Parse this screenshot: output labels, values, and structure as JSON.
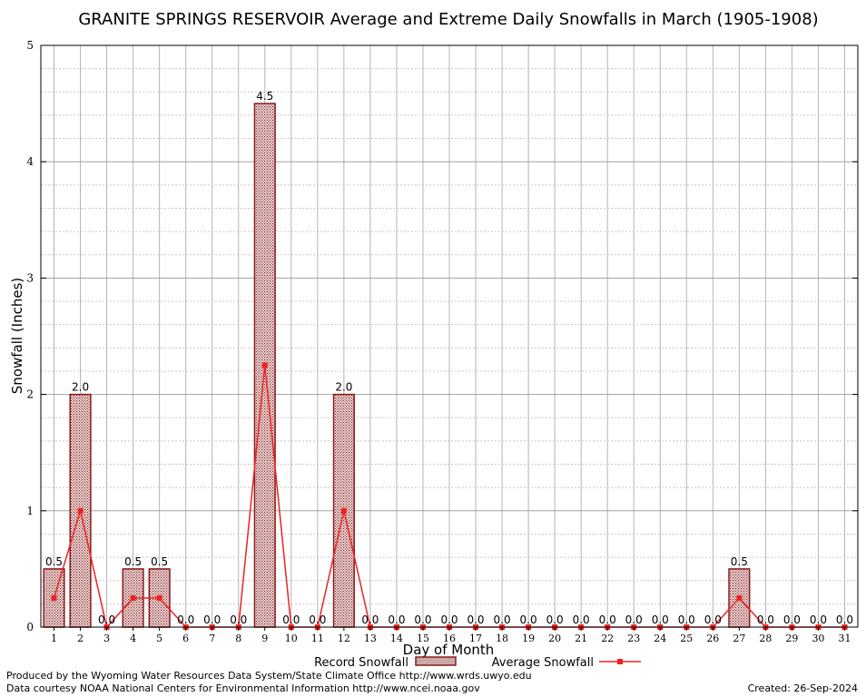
{
  "chart_data": {
    "type": "bar",
    "title": "GRANITE SPRINGS RESERVOIR Average and Extreme Daily Snowfalls in March (1905-1908)",
    "xlabel": "Day of Month",
    "ylabel": "Snowfall (Inches)",
    "ylim": [
      0,
      5
    ],
    "yticks": [
      0,
      1,
      2,
      3,
      4,
      5
    ],
    "grid": true,
    "legend_placement": "bottom",
    "categories": [
      "1",
      "2",
      "3",
      "4",
      "5",
      "6",
      "7",
      "8",
      "9",
      "10",
      "11",
      "12",
      "13",
      "14",
      "15",
      "16",
      "17",
      "18",
      "19",
      "20",
      "21",
      "22",
      "23",
      "24",
      "25",
      "26",
      "27",
      "28",
      "29",
      "30",
      "31"
    ],
    "series": [
      {
        "name": "Record Snowfall",
        "kind": "bar",
        "color": "#8b1a1a",
        "values": [
          0.5,
          2.0,
          0.0,
          0.5,
          0.5,
          0.0,
          0.0,
          0.0,
          4.5,
          0.0,
          0.0,
          2.0,
          0.0,
          0.0,
          0.0,
          0.0,
          0.0,
          0.0,
          0.0,
          0.0,
          0.0,
          0.0,
          0.0,
          0.0,
          0.0,
          0.0,
          0.5,
          0.0,
          0.0,
          0.0,
          0.0
        ],
        "labels": [
          "0.5",
          "2.0",
          "0.0",
          "0.5",
          "0.5",
          "0.0",
          "0.0",
          "0.0",
          "4.5",
          "0.0",
          "0.0",
          "2.0",
          "0.0",
          "0.0",
          "0.0",
          "0.0",
          "0.0",
          "0.0",
          "0.0",
          "0.0",
          "0.0",
          "0.0",
          "0.0",
          "0.0",
          "0.0",
          "0.0",
          "0.5",
          "0.0",
          "0.0",
          "0.0",
          "0.0"
        ]
      },
      {
        "name": "Average Snowfall",
        "kind": "line",
        "color": "#ee2222",
        "values": [
          0.25,
          1.0,
          0.0,
          0.25,
          0.25,
          0.0,
          0.0,
          0.0,
          2.25,
          0.0,
          0.0,
          1.0,
          0.0,
          0.0,
          0.0,
          0.0,
          0.0,
          0.0,
          0.0,
          0.0,
          0.0,
          0.0,
          0.0,
          0.0,
          0.0,
          0.0,
          0.25,
          0.0,
          0.0,
          0.0,
          0.0
        ]
      }
    ]
  },
  "footer": {
    "produced_by": "Produced by the Wyoming Water Resources Data System/State Climate Office http://www.wrds.uwyo.edu",
    "courtesy": "Data courtesy NOAA National Centers for Environmental Information http://www.ncei.noaa.gov",
    "created": "Created:  26-Sep-2024"
  }
}
